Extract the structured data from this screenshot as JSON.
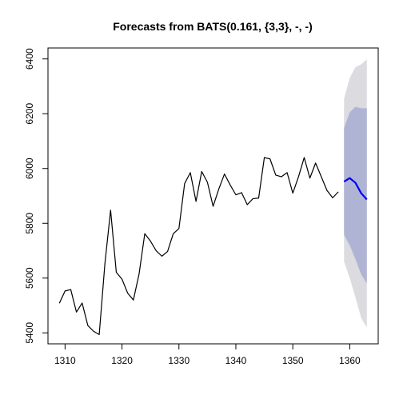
{
  "chart_data": {
    "type": "line",
    "title": "Forecasts from BATS(0.161, {3,3}, -, -)",
    "xlabel": "",
    "ylabel": "",
    "xlim": [
      1307,
      1365
    ],
    "ylim": [
      5360,
      6440
    ],
    "x_ticks": [
      1310,
      1320,
      1330,
      1340,
      1350,
      1360
    ],
    "y_ticks": [
      5400,
      5600,
      5800,
      6000,
      6200,
      6400
    ],
    "grid": false,
    "legend": "none",
    "colors": {
      "history": "#000000",
      "forecast": "#0000ff",
      "band_80": "#b0b4d4",
      "band_95": "#dbdbe0"
    },
    "series": [
      {
        "kind": "history",
        "x": [
          1309,
          1310,
          1311,
          1312,
          1313,
          1314,
          1315,
          1316,
          1317,
          1318,
          1319,
          1320,
          1321,
          1322,
          1323,
          1324,
          1325,
          1326,
          1327,
          1328,
          1329,
          1330,
          1331,
          1332,
          1333,
          1334,
          1335,
          1336,
          1337,
          1338,
          1339,
          1340,
          1341,
          1342,
          1343,
          1344,
          1345,
          1346,
          1347,
          1348,
          1349,
          1350,
          1351,
          1352,
          1353,
          1354,
          1355,
          1356,
          1357,
          1358
        ],
        "y": [
          5508,
          5553,
          5558,
          5476,
          5509,
          5427,
          5406,
          5394,
          5653,
          5848,
          5621,
          5596,
          5545,
          5520,
          5615,
          5762,
          5735,
          5700,
          5680,
          5697,
          5762,
          5781,
          5945,
          5985,
          5880,
          5989,
          5950,
          5862,
          5925,
          5980,
          5940,
          5904,
          5912,
          5868,
          5890,
          5892,
          6040,
          6035,
          5976,
          5970,
          5985,
          5910,
          5970,
          6040,
          5965,
          6020,
          5970,
          5920,
          5893,
          5915
        ]
      },
      {
        "kind": "forecast",
        "x": [
          1359,
          1360,
          1361,
          1362,
          1363
        ],
        "y": [
          5952,
          5965,
          5948,
          5910,
          5887
        ],
        "lo80": [
          5758,
          5720,
          5669,
          5614,
          5580
        ],
        "hi80": [
          6148,
          6205,
          6225,
          6220,
          6220
        ],
        "lo95": [
          5660,
          5600,
          5530,
          5455,
          5420
        ],
        "hi95": [
          6255,
          6330,
          6370,
          6380,
          6398
        ]
      }
    ]
  }
}
